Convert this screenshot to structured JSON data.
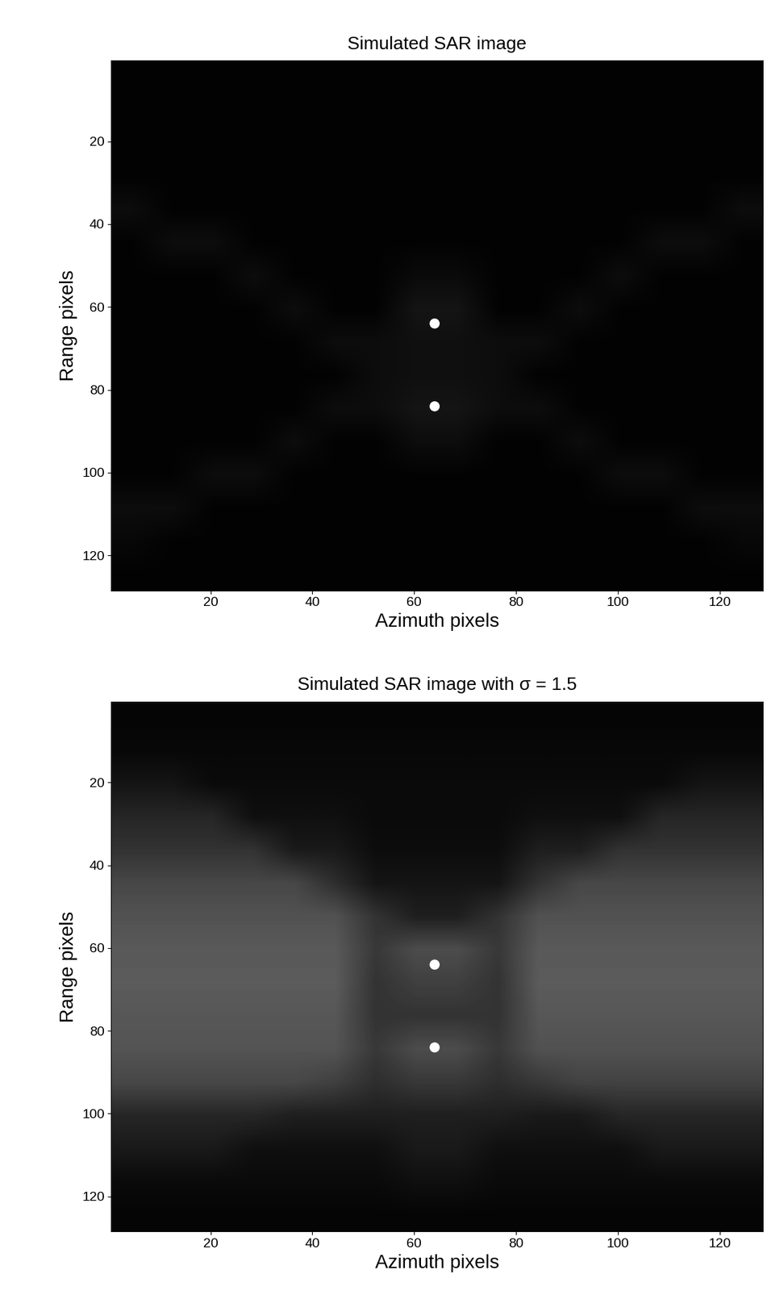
{
  "chart_data": [
    {
      "type": "heatmap",
      "title": "Simulated SAR image",
      "x_label": "Azimuth pixels",
      "y_label": "Range pixels",
      "xlim": [
        0.5,
        128.5
      ],
      "ylim": [
        128.5,
        0.5
      ],
      "xticks": [
        20,
        40,
        60,
        80,
        100,
        120
      ],
      "yticks": [
        20,
        40,
        60,
        80,
        100,
        120
      ],
      "color_range": [
        0,
        1
      ],
      "cells": [
        [
          0.01,
          0.01,
          0.01,
          0.01,
          0.01,
          0.01,
          0.01,
          0.01,
          0.01,
          0.01,
          0.01,
          0.01,
          0.01,
          0.01,
          0.01,
          0.01
        ],
        [
          0.01,
          0.01,
          0.01,
          0.01,
          0.01,
          0.01,
          0.01,
          0.01,
          0.01,
          0.01,
          0.01,
          0.01,
          0.01,
          0.01,
          0.01,
          0.01
        ],
        [
          0.01,
          0.01,
          0.01,
          0.01,
          0.01,
          0.01,
          0.01,
          0.01,
          0.01,
          0.01,
          0.01,
          0.01,
          0.01,
          0.01,
          0.01,
          0.01
        ],
        [
          0.01,
          0.01,
          0.01,
          0.01,
          0.01,
          0.01,
          0.01,
          0.01,
          0.01,
          0.01,
          0.01,
          0.01,
          0.01,
          0.01,
          0.01,
          0.01
        ],
        [
          0.05,
          0.01,
          0.01,
          0.01,
          0.01,
          0.01,
          0.01,
          0.01,
          0.01,
          0.01,
          0.01,
          0.01,
          0.01,
          0.01,
          0.01,
          0.05
        ],
        [
          0.01,
          0.05,
          0.05,
          0.01,
          0.01,
          0.01,
          0.01,
          0.01,
          0.01,
          0.01,
          0.01,
          0.01,
          0.01,
          0.05,
          0.05,
          0.01
        ],
        [
          0.01,
          0.01,
          0.01,
          0.05,
          0.01,
          0.01,
          0.01,
          0.04,
          0.04,
          0.01,
          0.01,
          0.01,
          0.05,
          0.01,
          0.01,
          0.01
        ],
        [
          0.01,
          0.01,
          0.01,
          0.01,
          0.05,
          0.01,
          0.01,
          0.08,
          0.08,
          0.01,
          0.01,
          0.05,
          0.01,
          0.01,
          0.01,
          0.01
        ],
        [
          0.01,
          0.01,
          0.01,
          0.01,
          0.01,
          0.05,
          0.05,
          0.06,
          0.06,
          0.05,
          0.05,
          0.01,
          0.01,
          0.01,
          0.01,
          0.01
        ],
        [
          0.01,
          0.01,
          0.01,
          0.01,
          0.01,
          0.01,
          0.05,
          0.06,
          0.06,
          0.05,
          0.01,
          0.01,
          0.01,
          0.01,
          0.01,
          0.01
        ],
        [
          0.01,
          0.01,
          0.01,
          0.01,
          0.01,
          0.05,
          0.05,
          0.08,
          0.08,
          0.05,
          0.05,
          0.01,
          0.01,
          0.01,
          0.01,
          0.01
        ],
        [
          0.01,
          0.01,
          0.01,
          0.01,
          0.05,
          0.01,
          0.01,
          0.05,
          0.05,
          0.01,
          0.01,
          0.05,
          0.01,
          0.01,
          0.01,
          0.01
        ],
        [
          0.01,
          0.01,
          0.05,
          0.05,
          0.01,
          0.01,
          0.01,
          0.01,
          0.01,
          0.01,
          0.01,
          0.01,
          0.05,
          0.05,
          0.01,
          0.01
        ],
        [
          0.05,
          0.05,
          0.01,
          0.01,
          0.01,
          0.01,
          0.01,
          0.01,
          0.01,
          0.01,
          0.01,
          0.01,
          0.01,
          0.01,
          0.05,
          0.05
        ],
        [
          0.03,
          0.01,
          0.01,
          0.01,
          0.01,
          0.01,
          0.01,
          0.01,
          0.01,
          0.01,
          0.01,
          0.01,
          0.01,
          0.01,
          0.01,
          0.03
        ],
        [
          0.01,
          0.01,
          0.01,
          0.01,
          0.01,
          0.01,
          0.01,
          0.01,
          0.01,
          0.01,
          0.01,
          0.01,
          0.01,
          0.01,
          0.01,
          0.01
        ]
      ],
      "targets": [
        {
          "x": 64,
          "y": 64
        },
        {
          "x": 64,
          "y": 84
        }
      ],
      "color": "#ffffff",
      "marker": "o"
    },
    {
      "type": "heatmap",
      "title": "Simulated SAR image with σ = 1.5",
      "x_label": "Azimuth pixels",
      "y_label": "Range pixels",
      "xlim": [
        0.5,
        128.5
      ],
      "ylim": [
        128.5,
        0.5
      ],
      "xticks": [
        20,
        40,
        60,
        80,
        100,
        120
      ],
      "yticks": [
        20,
        40,
        60,
        80,
        100,
        120
      ],
      "color_range": [
        0,
        1
      ],
      "cells": [
        [
          0.02,
          0.02,
          0.02,
          0.02,
          0.02,
          0.02,
          0.02,
          0.02,
          0.02,
          0.02,
          0.02,
          0.02,
          0.02,
          0.02,
          0.02,
          0.02
        ],
        [
          0.03,
          0.03,
          0.03,
          0.03,
          0.03,
          0.03,
          0.03,
          0.03,
          0.03,
          0.03,
          0.03,
          0.03,
          0.03,
          0.03,
          0.03,
          0.03
        ],
        [
          0.08,
          0.08,
          0.04,
          0.04,
          0.04,
          0.04,
          0.04,
          0.04,
          0.04,
          0.04,
          0.04,
          0.04,
          0.04,
          0.04,
          0.08,
          0.08
        ],
        [
          0.15,
          0.15,
          0.15,
          0.06,
          0.06,
          0.06,
          0.04,
          0.04,
          0.04,
          0.04,
          0.06,
          0.06,
          0.06,
          0.15,
          0.15,
          0.15
        ],
        [
          0.2,
          0.2,
          0.2,
          0.2,
          0.1,
          0.1,
          0.05,
          0.05,
          0.05,
          0.05,
          0.12,
          0.12,
          0.2,
          0.2,
          0.2,
          0.2
        ],
        [
          0.28,
          0.28,
          0.28,
          0.28,
          0.28,
          0.18,
          0.08,
          0.08,
          0.08,
          0.08,
          0.2,
          0.28,
          0.28,
          0.28,
          0.28,
          0.28
        ],
        [
          0.32,
          0.32,
          0.32,
          0.32,
          0.32,
          0.32,
          0.2,
          0.12,
          0.12,
          0.2,
          0.32,
          0.32,
          0.32,
          0.32,
          0.32,
          0.32
        ],
        [
          0.35,
          0.35,
          0.35,
          0.35,
          0.35,
          0.35,
          0.22,
          0.3,
          0.3,
          0.22,
          0.35,
          0.35,
          0.35,
          0.35,
          0.35,
          0.35
        ],
        [
          0.36,
          0.36,
          0.36,
          0.36,
          0.36,
          0.36,
          0.2,
          0.25,
          0.25,
          0.2,
          0.36,
          0.36,
          0.36,
          0.36,
          0.36,
          0.36
        ],
        [
          0.34,
          0.34,
          0.34,
          0.34,
          0.34,
          0.34,
          0.2,
          0.2,
          0.2,
          0.2,
          0.34,
          0.34,
          0.34,
          0.34,
          0.34,
          0.34
        ],
        [
          0.33,
          0.33,
          0.33,
          0.33,
          0.33,
          0.33,
          0.22,
          0.3,
          0.3,
          0.22,
          0.32,
          0.32,
          0.32,
          0.32,
          0.32,
          0.32
        ],
        [
          0.28,
          0.28,
          0.28,
          0.28,
          0.28,
          0.25,
          0.18,
          0.22,
          0.22,
          0.18,
          0.22,
          0.26,
          0.26,
          0.26,
          0.26,
          0.26
        ],
        [
          0.15,
          0.15,
          0.15,
          0.15,
          0.12,
          0.12,
          0.12,
          0.12,
          0.12,
          0.12,
          0.1,
          0.1,
          0.15,
          0.15,
          0.15,
          0.15
        ],
        [
          0.1,
          0.1,
          0.1,
          0.06,
          0.06,
          0.06,
          0.06,
          0.1,
          0.1,
          0.06,
          0.06,
          0.06,
          0.06,
          0.1,
          0.1,
          0.1
        ],
        [
          0.04,
          0.04,
          0.04,
          0.04,
          0.04,
          0.04,
          0.04,
          0.06,
          0.06,
          0.04,
          0.04,
          0.04,
          0.04,
          0.04,
          0.04,
          0.04
        ],
        [
          0.02,
          0.02,
          0.02,
          0.02,
          0.02,
          0.02,
          0.02,
          0.02,
          0.02,
          0.02,
          0.02,
          0.02,
          0.02,
          0.02,
          0.02,
          0.02
        ]
      ],
      "targets": [
        {
          "x": 64,
          "y": 64
        },
        {
          "x": 64,
          "y": 84
        }
      ],
      "color": "#ffffff",
      "marker": "o"
    }
  ]
}
